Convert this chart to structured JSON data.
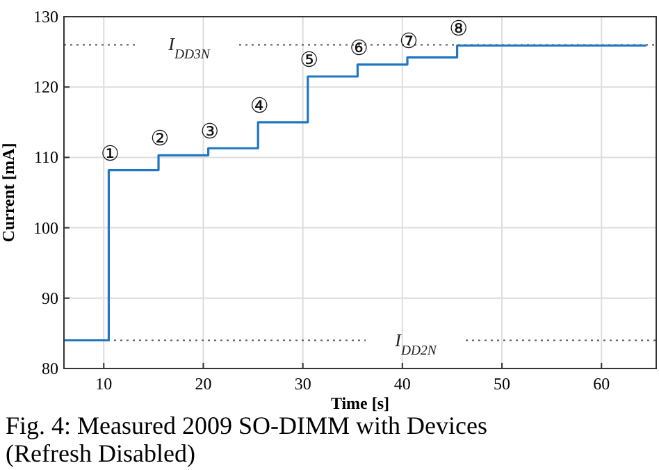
{
  "chart_data": {
    "type": "step",
    "xlabel": "Time [s]",
    "ylabel": "Current [mA]",
    "xlim": [
      6,
      65.5
    ],
    "ylim": [
      80,
      130
    ],
    "xticks": [
      10,
      20,
      30,
      40,
      50,
      60
    ],
    "yticks": [
      80,
      90,
      100,
      110,
      120,
      130
    ],
    "grid": true,
    "line_style": "solid",
    "marker": "none",
    "series": [
      {
        "color": "#1f77c4",
        "x": [
          6,
          8,
          10.5,
          10.5,
          13,
          15.5,
          15.5,
          18,
          20.5,
          20.5,
          23,
          25.5,
          25.5,
          28,
          30.5,
          30.5,
          33,
          35.5,
          35.5,
          38,
          40.5,
          40.5,
          43,
          45.5,
          45.5,
          50,
          55,
          60,
          64.5
        ],
        "values": [
          84,
          84,
          84,
          108.2,
          108.2,
          108.2,
          110.3,
          110.3,
          110.3,
          111.3,
          111.3,
          111.3,
          115,
          115,
          115,
          121.5,
          121.5,
          121.5,
          123.2,
          123.2,
          123.2,
          124.2,
          124.2,
          124.2,
          125.9,
          125.9,
          125.9,
          125.9,
          125.9
        ]
      }
    ],
    "ref_lines": [
      {
        "axis": "y",
        "value": 126,
        "label": "I$_{DD3N}$",
        "color": "#555555",
        "line_style": "dotted"
      },
      {
        "axis": "y",
        "value": 84,
        "label": "I$_{DD2N}$",
        "color": "#555555",
        "line_style": "dotted"
      }
    ],
    "annotations": [
      {
        "text": "①",
        "x": 10.5,
        "y": 108.2
      },
      {
        "text": "②",
        "x": 15.5,
        "y": 110.3
      },
      {
        "text": "③",
        "x": 20.5,
        "y": 111.3
      },
      {
        "text": "④",
        "x": 25.5,
        "y": 115
      },
      {
        "text": "⑤",
        "x": 30.5,
        "y": 121.5
      },
      {
        "text": "⑥",
        "x": 35.5,
        "y": 123.2
      },
      {
        "text": "⑦",
        "x": 40.5,
        "y": 124.2
      },
      {
        "text": "⑧",
        "x": 45.5,
        "y": 125.9
      },
      "Fig. 4: Measured 2009 SO-DIMM with Devices (Refresh Disabled)"
    ]
  }
}
